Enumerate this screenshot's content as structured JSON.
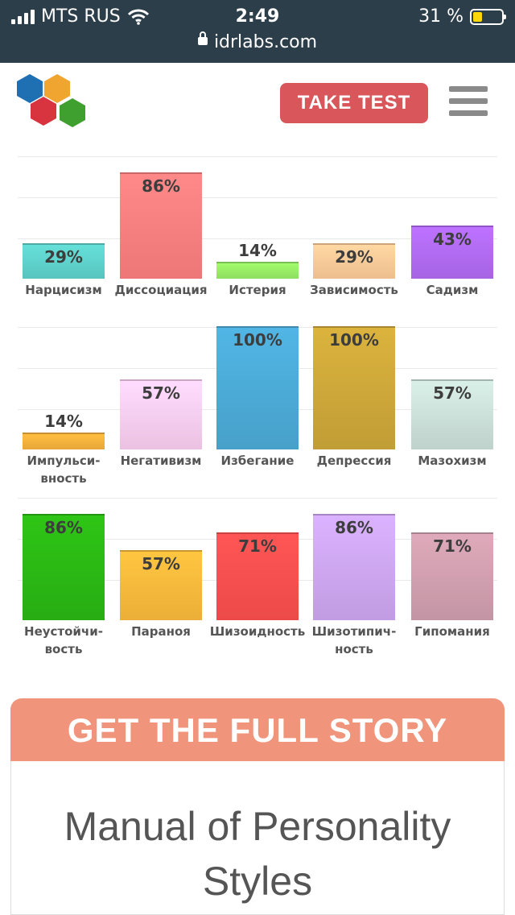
{
  "status_bar": {
    "carrier": "MTS RUS",
    "time": "2:49",
    "battery": "31 %",
    "battery_level": 0.31,
    "url": "idrlabs.com"
  },
  "header": {
    "take_test": "TAKE TEST"
  },
  "colors": {
    "take_test": "#d9575b",
    "story_banner": "#f0957c"
  },
  "chart_data": [
    {
      "type": "bar",
      "ylim": [
        0,
        100
      ],
      "categories": [
        "Нарцисизм",
        "Диссоциация",
        "Истерия",
        "Зависимость",
        "Садизм"
      ],
      "values": [
        29,
        86,
        14,
        29,
        43
      ],
      "value_labels": [
        "29%",
        "86%",
        "14%",
        "29%",
        "43%"
      ],
      "colors": [
        "#5fd3cd",
        "#ff8080",
        "#99ee66",
        "#ffcc99",
        "#b26cf5"
      ]
    },
    {
      "type": "bar",
      "ylim": [
        0,
        100
      ],
      "categories": [
        "Импульсивность",
        "Негативизм",
        "Избегание",
        "Депрессия",
        "Мазохизм"
      ],
      "category_lines": [
        [
          "Импульси-",
          "вность"
        ],
        [
          "Негативизм"
        ],
        [
          "Избегание"
        ],
        [
          "Депрессия"
        ],
        [
          "Мазохизм"
        ]
      ],
      "values": [
        14,
        57,
        100,
        100,
        57
      ],
      "value_labels": [
        "14%",
        "57%",
        "100%",
        "100%",
        "57%"
      ],
      "colors": [
        "#f8b33c",
        "#fdd0f2",
        "#4cacd8",
        "#cfa93a",
        "#cde2db"
      ]
    },
    {
      "type": "bar",
      "ylim": [
        0,
        100
      ],
      "categories": [
        "Неустойчивость",
        "Параноя",
        "Шизоидность",
        "Шизотипичность",
        "Гипомания"
      ],
      "category_lines": [
        [
          "Неустойчи-",
          "вость"
        ],
        [
          "Параноя"
        ],
        [
          "Шизоидность"
        ],
        [
          "Шизотипич-",
          "ность"
        ],
        [
          "Гипомания"
        ]
      ],
      "values": [
        86,
        57,
        71,
        86,
        71
      ],
      "value_labels": [
        "86%",
        "57%",
        "71%",
        "86%",
        "71%"
      ],
      "colors": [
        "#2bba14",
        "#fdbb3c",
        "#ff5050",
        "#cfa8f3",
        "#d2a0b0"
      ]
    }
  ],
  "story": {
    "banner": "GET THE FULL STORY",
    "title_line1": "Manual of Personality",
    "title_line2": "Styles"
  }
}
